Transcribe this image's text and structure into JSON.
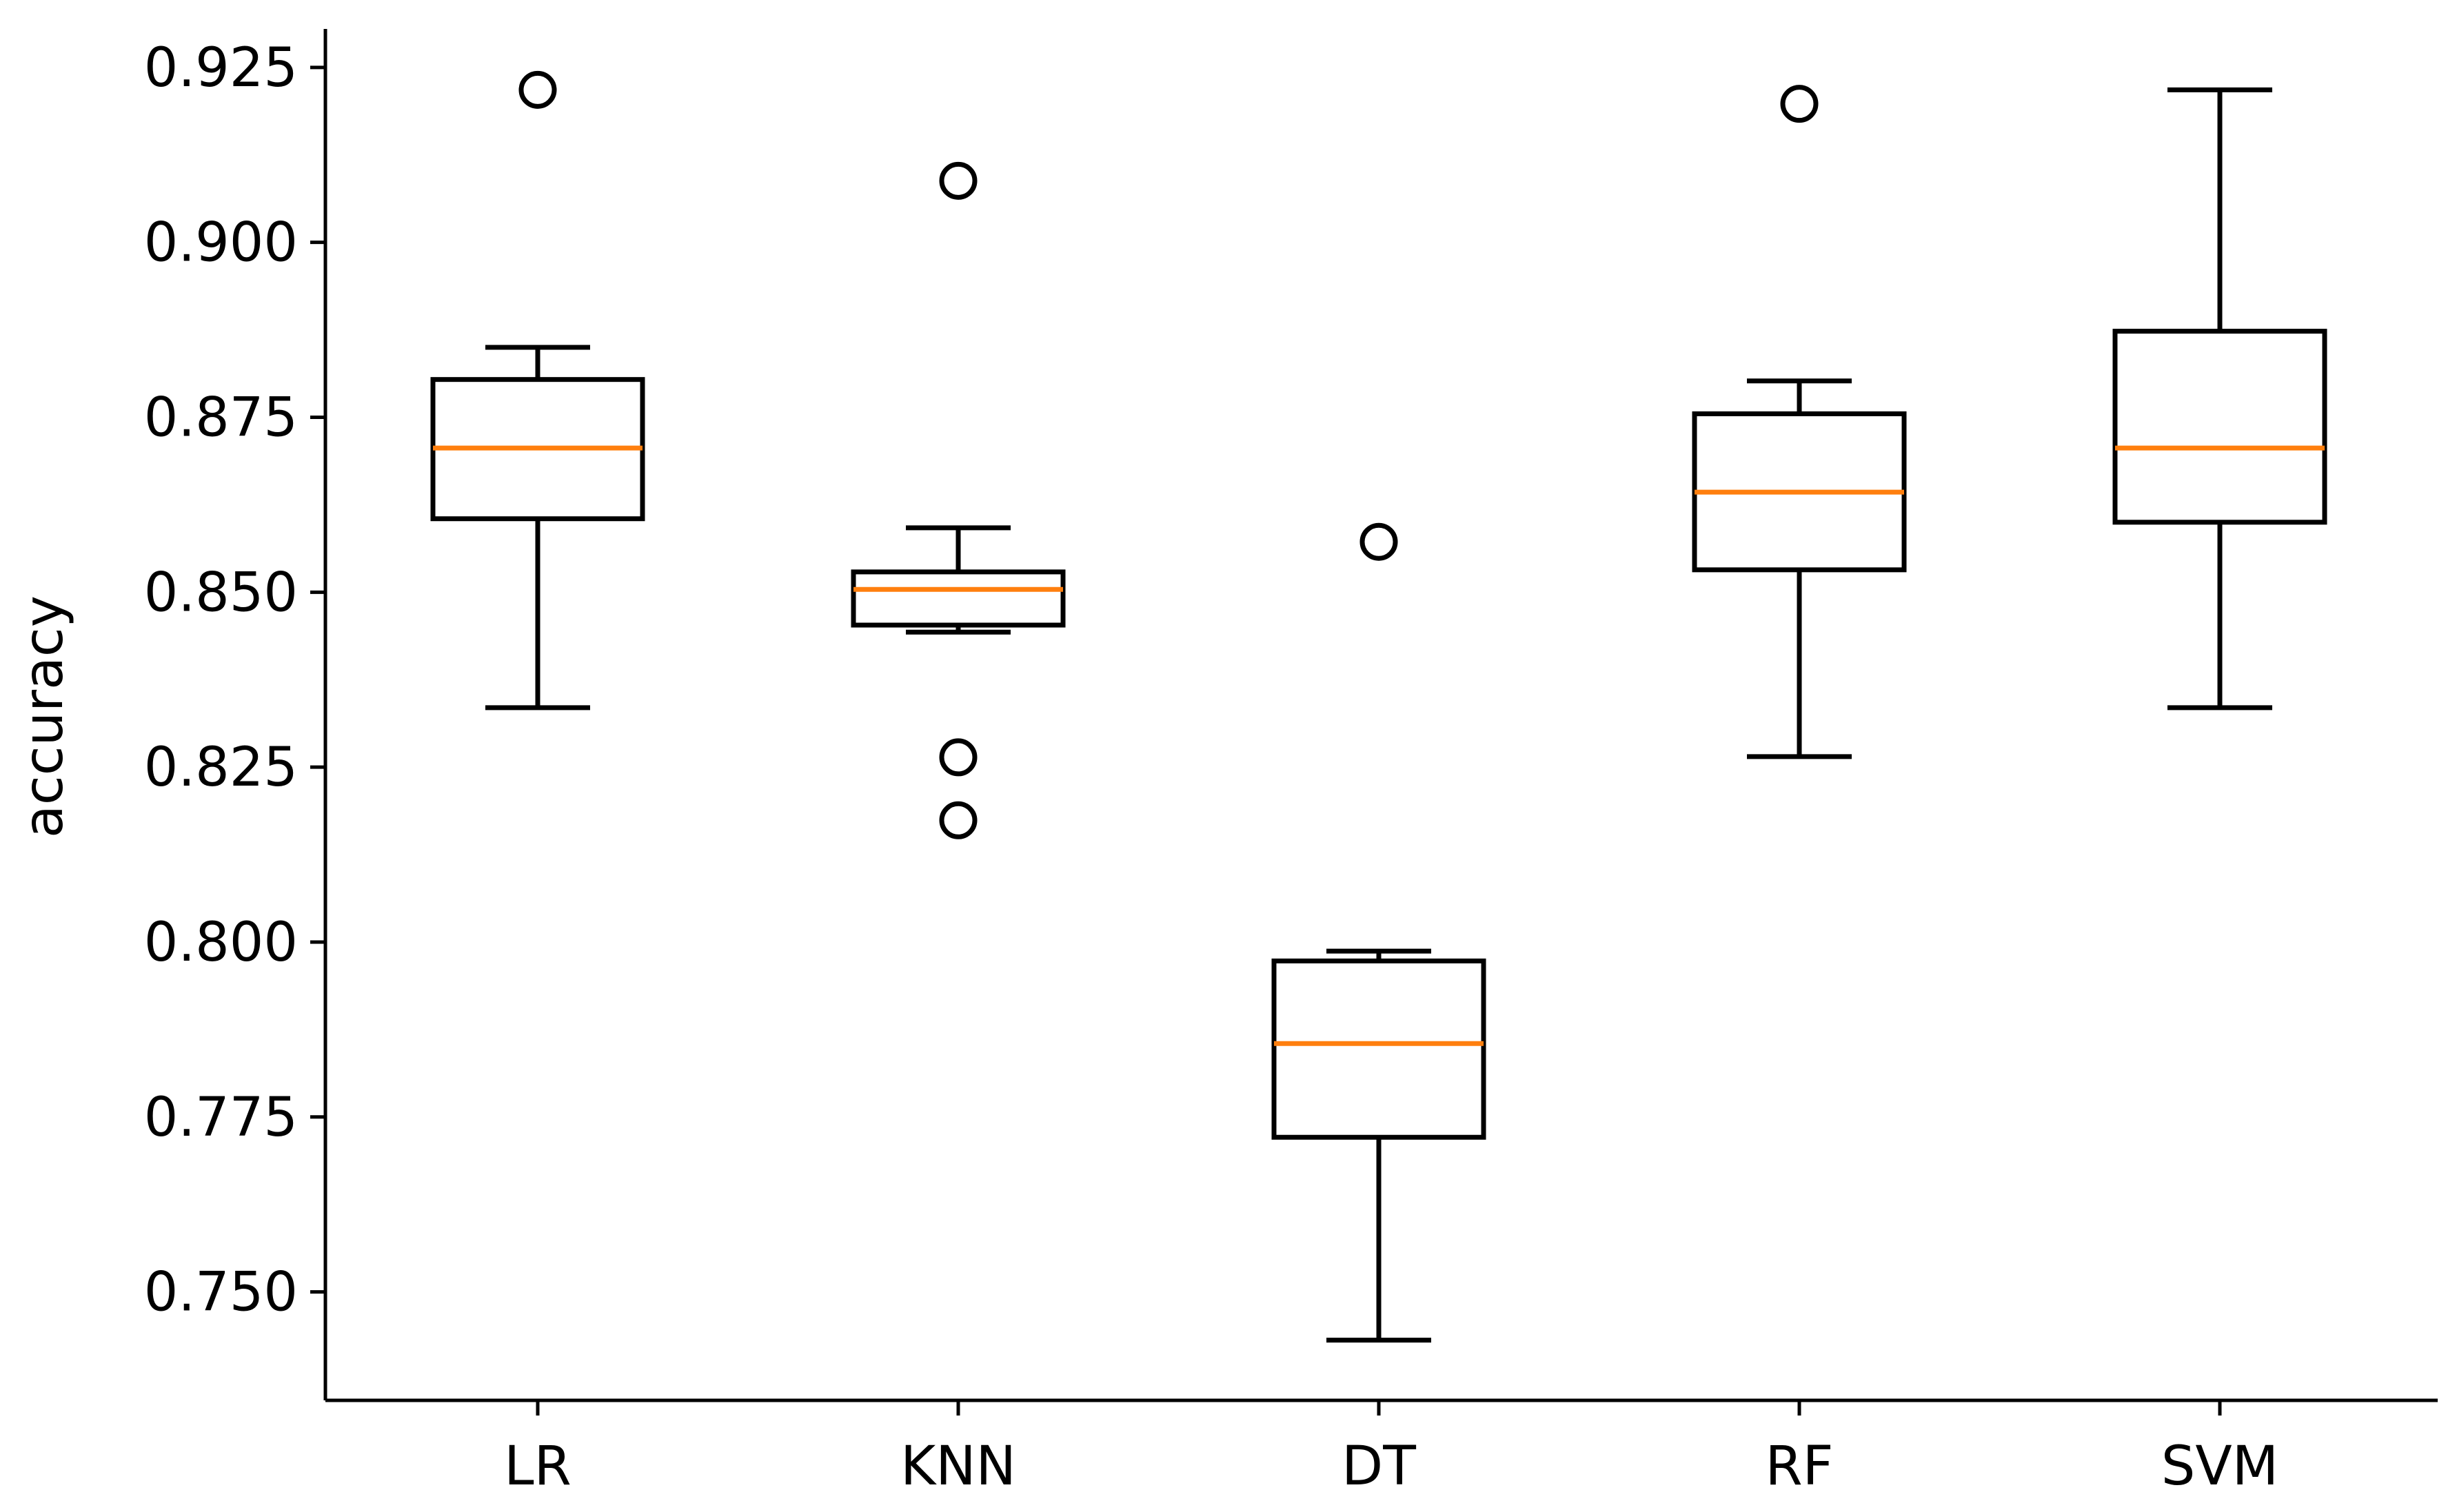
{
  "chart_data": {
    "type": "boxplot",
    "ylabel": "accuracy",
    "xlabel": "",
    "title": "",
    "ylim": [
      0.7345,
      0.9305
    ],
    "yticks": [
      "0.750",
      "0.775",
      "0.800",
      "0.825",
      "0.850",
      "0.875",
      "0.900",
      "0.925"
    ],
    "grid": false,
    "median_color": "#ff7f0e",
    "box_color": "#000000",
    "categories": [
      "LR",
      "KNN",
      "DT",
      "RF",
      "SVM"
    ],
    "boxes": [
      {
        "label": "LR",
        "whisker_low": 0.8335,
        "q1": 0.8605,
        "median": 0.8706,
        "q3": 0.8804,
        "whisker_high": 0.885,
        "outliers": [
          0.9218
        ]
      },
      {
        "label": "KNN",
        "whisker_low": 0.8443,
        "q1": 0.8453,
        "median": 0.8504,
        "q3": 0.8529,
        "whisker_high": 0.8592,
        "outliers": [
          0.9088,
          0.8264,
          0.8174
        ]
      },
      {
        "label": "DT",
        "whisker_low": 0.7431,
        "q1": 0.7721,
        "median": 0.7855,
        "q3": 0.7973,
        "whisker_high": 0.7987,
        "outliers": [
          0.8572
        ]
      },
      {
        "label": "RF",
        "whisker_low": 0.8265,
        "q1": 0.8532,
        "median": 0.8643,
        "q3": 0.8755,
        "whisker_high": 0.8802,
        "outliers": [
          0.9198
        ]
      },
      {
        "label": "SVM",
        "whisker_low": 0.8335,
        "q1": 0.86,
        "median": 0.8706,
        "q3": 0.8873,
        "whisker_high": 0.9218,
        "outliers": []
      }
    ]
  }
}
